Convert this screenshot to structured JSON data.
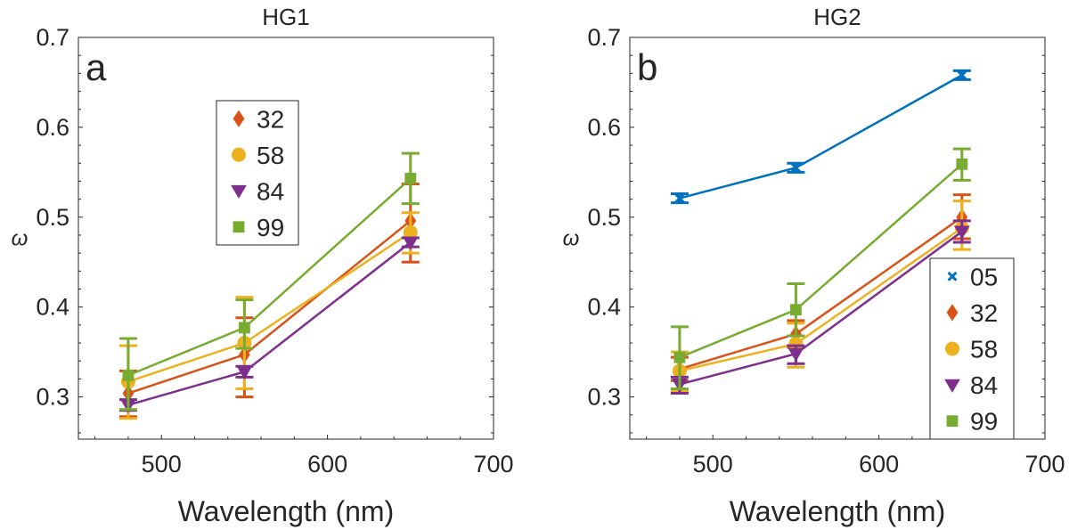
{
  "colors": {
    "05": "#0072BD",
    "32": "#D95319",
    "58": "#EDB120",
    "84": "#7E2F8E",
    "99": "#77AC30"
  },
  "chart_data": [
    {
      "type": "line",
      "title": "HG1",
      "panel_label": "a",
      "xlabel": "Wavelength (nm)",
      "ylabel": "ω",
      "xlim": [
        450,
        700
      ],
      "ylim": [
        0.253,
        0.7
      ],
      "xticks": [
        500,
        600,
        700
      ],
      "yticks": [
        0.3,
        0.4,
        0.5,
        0.6,
        0.7
      ],
      "grid": false,
      "legend_position": "top-center",
      "x": [
        480,
        550,
        650
      ],
      "series": [
        {
          "name": "32",
          "marker": "diamond",
          "values": [
            0.304,
            0.347,
            0.496
          ],
          "err_low": [
            0.278,
            0.3,
            0.45
          ],
          "err_high": [
            0.329,
            0.388,
            0.537
          ]
        },
        {
          "name": "58",
          "marker": "circle",
          "values": [
            0.317,
            0.36,
            0.483
          ],
          "err_low": [
            0.276,
            0.309,
            0.46
          ],
          "err_high": [
            0.357,
            0.411,
            0.505
          ]
        },
        {
          "name": "84",
          "marker": "triangle-down",
          "values": [
            0.291,
            0.328,
            0.472
          ],
          "err_low": [
            0.285,
            0.322,
            0.467
          ],
          "err_high": [
            0.297,
            0.334,
            0.477
          ]
        },
        {
          "name": "99",
          "marker": "square",
          "values": [
            0.324,
            0.377,
            0.543
          ],
          "err_low": [
            0.286,
            0.354,
            0.515
          ],
          "err_high": [
            0.365,
            0.408,
            0.571
          ]
        }
      ]
    },
    {
      "type": "line",
      "title": "HG2",
      "panel_label": "b",
      "xlabel": "Wavelength (nm)",
      "ylabel": "ω",
      "xlim": [
        450,
        700
      ],
      "ylim": [
        0.253,
        0.7
      ],
      "xticks": [
        500,
        600,
        700
      ],
      "yticks": [
        0.3,
        0.4,
        0.5,
        0.6,
        0.7
      ],
      "grid": false,
      "legend_position": "bottom-right",
      "x": [
        480,
        550,
        650
      ],
      "series": [
        {
          "name": "05",
          "marker": "x",
          "values": [
            0.521,
            0.555,
            0.658
          ],
          "err_low": [
            0.516,
            0.55,
            0.653
          ],
          "err_high": [
            0.526,
            0.56,
            0.663
          ]
        },
        {
          "name": "32",
          "marker": "diamond",
          "values": [
            0.331,
            0.37,
            0.5
          ],
          "err_low": [
            0.318,
            0.355,
            0.476
          ],
          "err_high": [
            0.344,
            0.385,
            0.525
          ]
        },
        {
          "name": "58",
          "marker": "circle",
          "values": [
            0.329,
            0.359,
            0.488
          ],
          "err_low": [
            0.306,
            0.333,
            0.464
          ],
          "err_high": [
            0.35,
            0.382,
            0.518
          ]
        },
        {
          "name": "84",
          "marker": "triangle-down",
          "values": [
            0.314,
            0.348,
            0.484
          ],
          "err_low": [
            0.304,
            0.337,
            0.472
          ],
          "err_high": [
            0.322,
            0.357,
            0.496
          ]
        },
        {
          "name": "99",
          "marker": "square",
          "values": [
            0.344,
            0.397,
            0.559
          ],
          "err_low": [
            0.309,
            0.368,
            0.541
          ],
          "err_high": [
            0.378,
            0.426,
            0.576
          ]
        }
      ]
    }
  ]
}
